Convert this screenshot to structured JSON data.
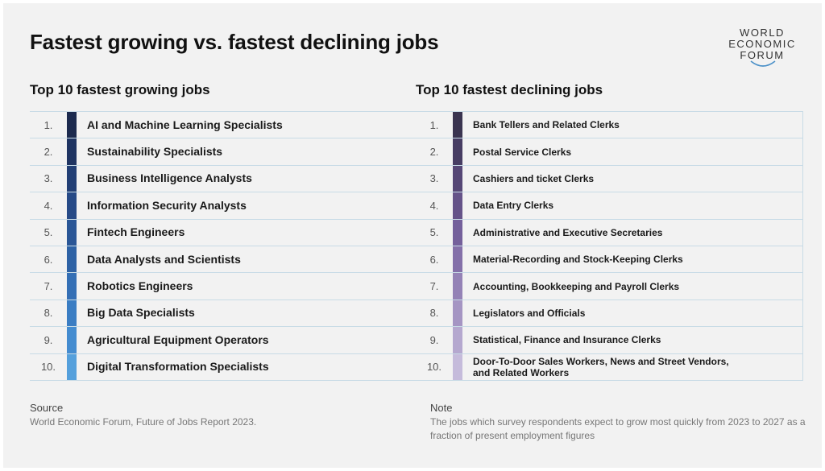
{
  "page_title": "Fastest growing vs. fastest declining jobs",
  "logo": {
    "lines": [
      "WORLD",
      "ECONOMIC",
      "FORUM"
    ]
  },
  "growing": {
    "heading": "Top 10 fastest growing jobs",
    "items": [
      {
        "rank": "1.",
        "label": "AI and Machine Learning Specialists",
        "color": "#1c2a4e"
      },
      {
        "rank": "2.",
        "label": "Sustainability Specialists",
        "color": "#1f3462"
      },
      {
        "rank": "3.",
        "label": "Business Intelligence Analysts",
        "color": "#223f75"
      },
      {
        "rank": "4.",
        "label": "Information Security Analysts",
        "color": "#264a87"
      },
      {
        "rank": "5.",
        "label": "Fintech Engineers",
        "color": "#2a5696"
      },
      {
        "rank": "6.",
        "label": "Data Analysts and Scientists",
        "color": "#2e62a5"
      },
      {
        "rank": "7.",
        "label": "Robotics Engineers",
        "color": "#346fb5"
      },
      {
        "rank": "8.",
        "label": "Big Data Specialists",
        "color": "#3a7dc3"
      },
      {
        "rank": "9.",
        "label": "Agricultural Equipment Operators",
        "color": "#448cd0"
      },
      {
        "rank": "10.",
        "label": "Digital Transformation Specialists",
        "color": "#55a0dc"
      }
    ]
  },
  "declining": {
    "heading": "Top 10 fastest declining jobs",
    "items": [
      {
        "rank": "1.",
        "label": "Bank Tellers and Related Clerks",
        "color": "#3a3450"
      },
      {
        "rank": "2.",
        "label": "Postal Service Clerks",
        "color": "#473d63"
      },
      {
        "rank": "3.",
        "label": "Cashiers and ticket Clerks",
        "color": "#564776"
      },
      {
        "rank": "4.",
        "label": "Data Entry Clerks",
        "color": "#655389"
      },
      {
        "rank": "5.",
        "label": "Administrative and Executive Secretaries",
        "color": "#74609b"
      },
      {
        "rank": "6.",
        "label": "Material-Recording and Stock-Keeping Clerks",
        "color": "#8470a9"
      },
      {
        "rank": "7.",
        "label": "Accounting, Bookkeeping and Payroll Clerks",
        "color": "#9482b6"
      },
      {
        "rank": "8.",
        "label": "Legislators and Officials",
        "color": "#a595c3"
      },
      {
        "rank": "9.",
        "label": "Statistical, Finance and Insurance Clerks",
        "color": "#b5a8cf"
      },
      {
        "rank": "10.",
        "label": "Door-To-Door Sales Workers, News and Street Vendors,\nand Related Workers",
        "color": "#c5bbdb"
      }
    ]
  },
  "source": {
    "heading": "Source",
    "text": "World Economic Forum, Future of Jobs Report 2023."
  },
  "note": {
    "heading": "Note",
    "text": "The jobs which survey respondents expect to grow most quickly from 2023 to 2027 as a fraction of present employment figures"
  }
}
